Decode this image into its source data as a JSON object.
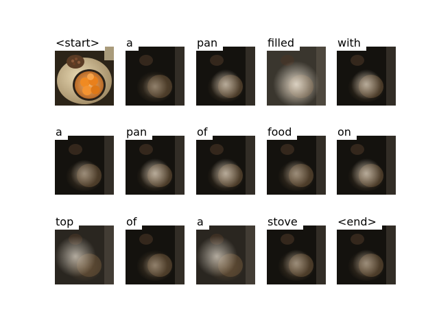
{
  "steps": [
    {
      "word": "<start>",
      "attention": "full"
    },
    {
      "word": "a",
      "attention": "dark"
    },
    {
      "word": "pan",
      "attention": "center"
    },
    {
      "word": "filled",
      "attention": "bright"
    },
    {
      "word": "with",
      "attention": "center"
    },
    {
      "word": "a",
      "attention": "center-dark"
    },
    {
      "word": "pan",
      "attention": "center"
    },
    {
      "word": "of",
      "attention": "center"
    },
    {
      "word": "food",
      "attention": "center-dark"
    },
    {
      "word": "on",
      "attention": "center"
    },
    {
      "word": "top",
      "attention": "left-bright"
    },
    {
      "word": "of",
      "attention": "dark"
    },
    {
      "word": "a",
      "attention": "left-bright"
    },
    {
      "word": "stove",
      "attention": "center-dark"
    },
    {
      "word": "<end>",
      "attention": "center-dark"
    }
  ],
  "colors": {
    "background": "#ffffff",
    "text": "#000000",
    "table": "#cdb78e",
    "bowl": "#e69a4a",
    "fruit": "#f08a22",
    "dark": "#14120e"
  }
}
